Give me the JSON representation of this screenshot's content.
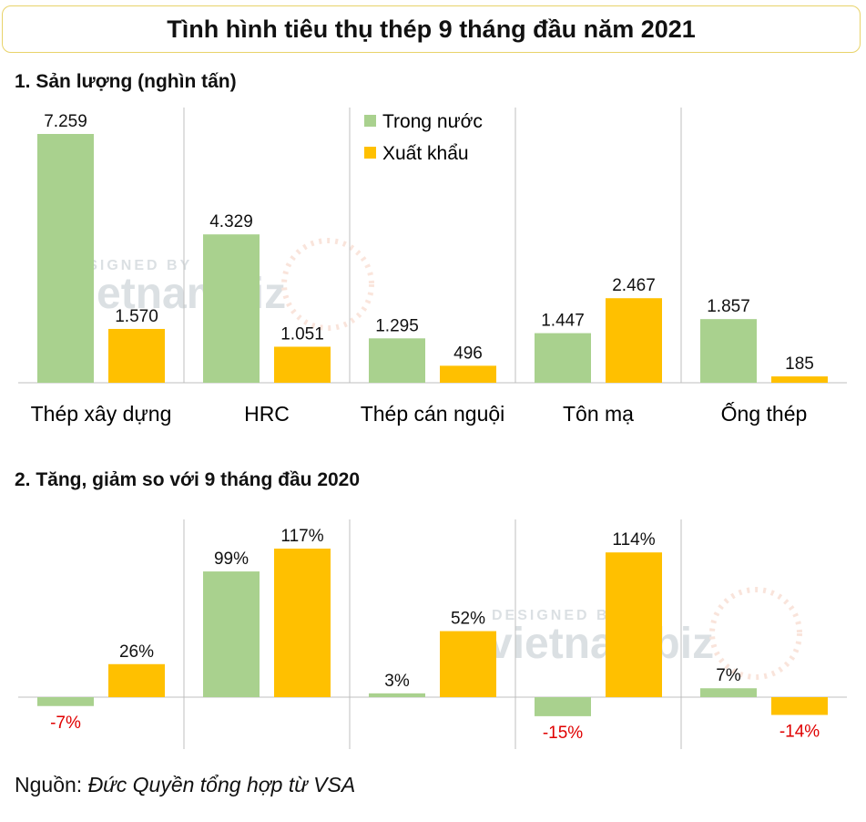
{
  "title": "Tình hình tiêu thụ thép 9 tháng đầu năm 2021",
  "source": {
    "label": "Nguồn: ",
    "text": "Đức Quyền tổng hợp từ VSA"
  },
  "watermark": {
    "top": "DESIGNED BY",
    "brand": "vietnambiz"
  },
  "colors": {
    "domestic": "#a9d18e",
    "export": "#ffc000",
    "negative_label": "#e00000",
    "divider": "#bfbfbf",
    "border": "#e8d36a"
  },
  "chart_data": [
    {
      "type": "bar",
      "title": "1. Sản lượng (nghìn tấn)",
      "categories": [
        "Thép xây dựng",
        "HRC",
        "Thép cán nguội",
        "Tôn mạ",
        "Ống thép"
      ],
      "series": [
        {
          "name": "Trong nước",
          "values": [
            7259,
            4329,
            1295,
            1447,
            1857
          ],
          "labels": [
            "7.259",
            "4.329",
            "1.295",
            "1.447",
            "1.857"
          ]
        },
        {
          "name": "Xuất khẩu",
          "values": [
            1570,
            1051,
            496,
            2467,
            185
          ],
          "labels": [
            "1.570",
            "1.051",
            "496",
            "2.467",
            "185"
          ]
        }
      ],
      "legend": "top-center",
      "ylim": [
        0,
        7259
      ]
    },
    {
      "type": "bar",
      "title": "2. Tăng, giảm so với 9 tháng đầu 2020",
      "categories": [
        "Thép xây dựng",
        "HRC",
        "Thép cán nguội",
        "Tôn mạ",
        "Ống thép"
      ],
      "series": [
        {
          "name": "Trong nước",
          "values": [
            -7,
            99,
            3,
            -15,
            7
          ],
          "labels": [
            "-7%",
            "99%",
            "3%",
            "-15%",
            "7%"
          ]
        },
        {
          "name": "Xuất khẩu",
          "values": [
            26,
            117,
            52,
            114,
            -14
          ],
          "labels": [
            "26%",
            "117%",
            "52%",
            "114%",
            "-14%"
          ]
        }
      ],
      "ylim": [
        -15,
        117
      ]
    }
  ]
}
